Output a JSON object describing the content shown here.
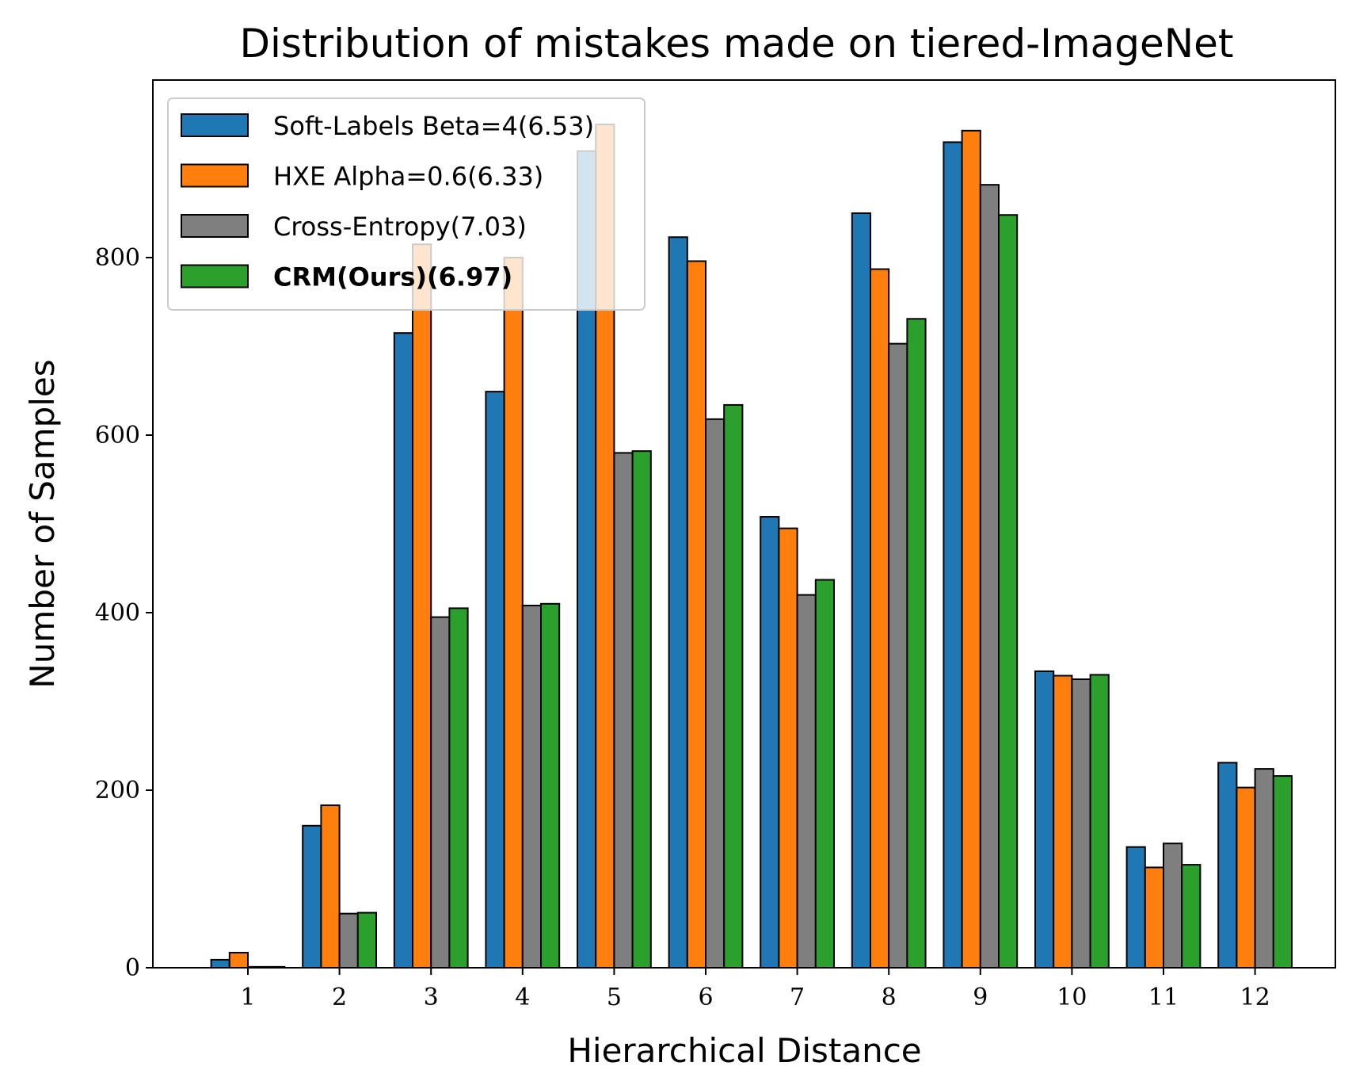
{
  "chart_data": {
    "type": "bar",
    "title": "Distribution of mistakes made on tiered-ImageNet",
    "xlabel": "Hierarchical Distance",
    "ylabel": "Number of Samples",
    "categories": [
      "1",
      "2",
      "3",
      "4",
      "5",
      "6",
      "7",
      "8",
      "9",
      "10",
      "11",
      "12"
    ],
    "ylim": [
      0,
      1000
    ],
    "yticks": [
      0,
      200,
      400,
      600,
      800
    ],
    "grid": false,
    "legend_position": "upper-left",
    "series": [
      {
        "name": "Soft-Labels Beta=4(6.53)",
        "color": "#1f77b4",
        "bold": false,
        "values": [
          9,
          160,
          715,
          649,
          920,
          823,
          508,
          850,
          930,
          334,
          136,
          231
        ]
      },
      {
        "name": "HXE Alpha=0.6(6.33)",
        "color": "#ff7f0e",
        "bold": false,
        "values": [
          17,
          183,
          815,
          800,
          950,
          796,
          495,
          787,
          943,
          329,
          113,
          203
        ]
      },
      {
        "name": "Cross-Entropy(7.03)",
        "color": "#7f7f7f",
        "bold": false,
        "values": [
          1,
          61,
          395,
          408,
          580,
          618,
          420,
          703,
          882,
          325,
          140,
          224
        ]
      },
      {
        "name": "CRM(Ours)(6.97)",
        "color": "#2ca02c",
        "bold": true,
        "values": [
          1,
          62,
          405,
          410,
          582,
          634,
          437,
          731,
          848,
          330,
          116,
          216
        ]
      }
    ]
  }
}
